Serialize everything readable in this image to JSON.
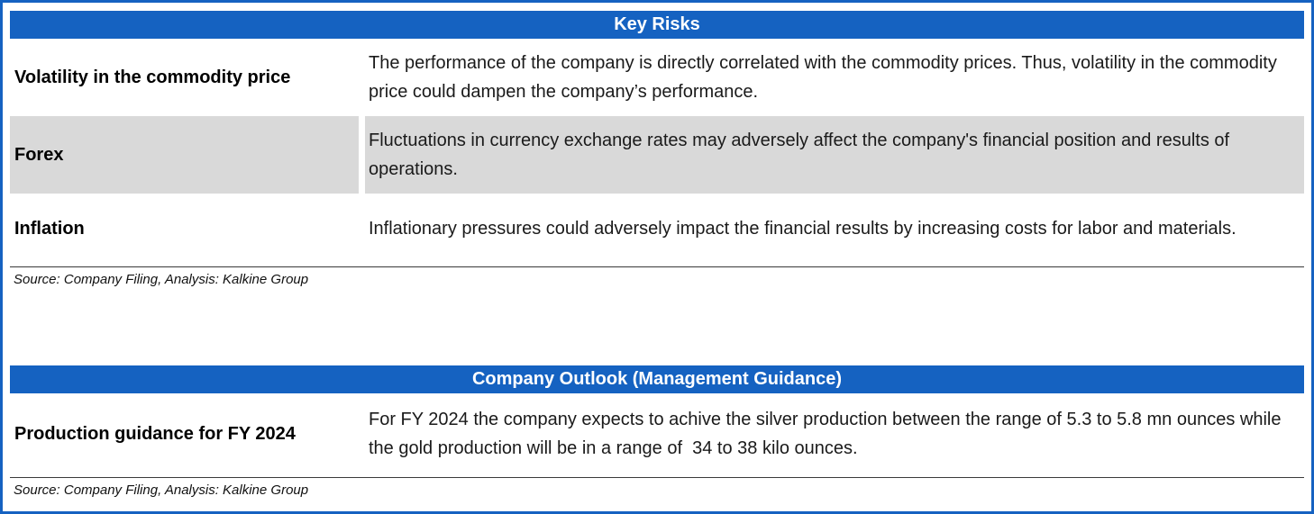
{
  "colors": {
    "header_bg": "#1562C1",
    "header_text": "#FFFFFF",
    "border_blue": "#1562C1",
    "row_alt_bg": "#D9D9D9"
  },
  "key_risks": {
    "title": "Key Risks",
    "rows": [
      {
        "label": "Volatility in the commodity price",
        "text": "The performance of the company is directly correlated with the commodity prices. Thus, volatility in the commodity price could dampen the company’s performance."
      },
      {
        "label": "Forex",
        "text": "Fluctuations in currency exchange rates may adversely affect the company's financial position and results of operations."
      },
      {
        "label": "Inflation",
        "text": "Inflationary pressures could adversely impact the financial results by increasing costs for labor and materials."
      }
    ],
    "source": "Source: Company Filing, Analysis: Kalkine Group"
  },
  "outlook": {
    "title": "Company Outlook (Management Guidance)",
    "rows": [
      {
        "label": "Production guidance for FY 2024",
        "text": "For FY 2024 the company expects to achive the silver production between the range of 5.3 to 5.8 mn ounces while the gold production will be in a range of  34 to 38 kilo ounces."
      }
    ],
    "source": "Source: Company Filing, Analysis: Kalkine Group"
  }
}
